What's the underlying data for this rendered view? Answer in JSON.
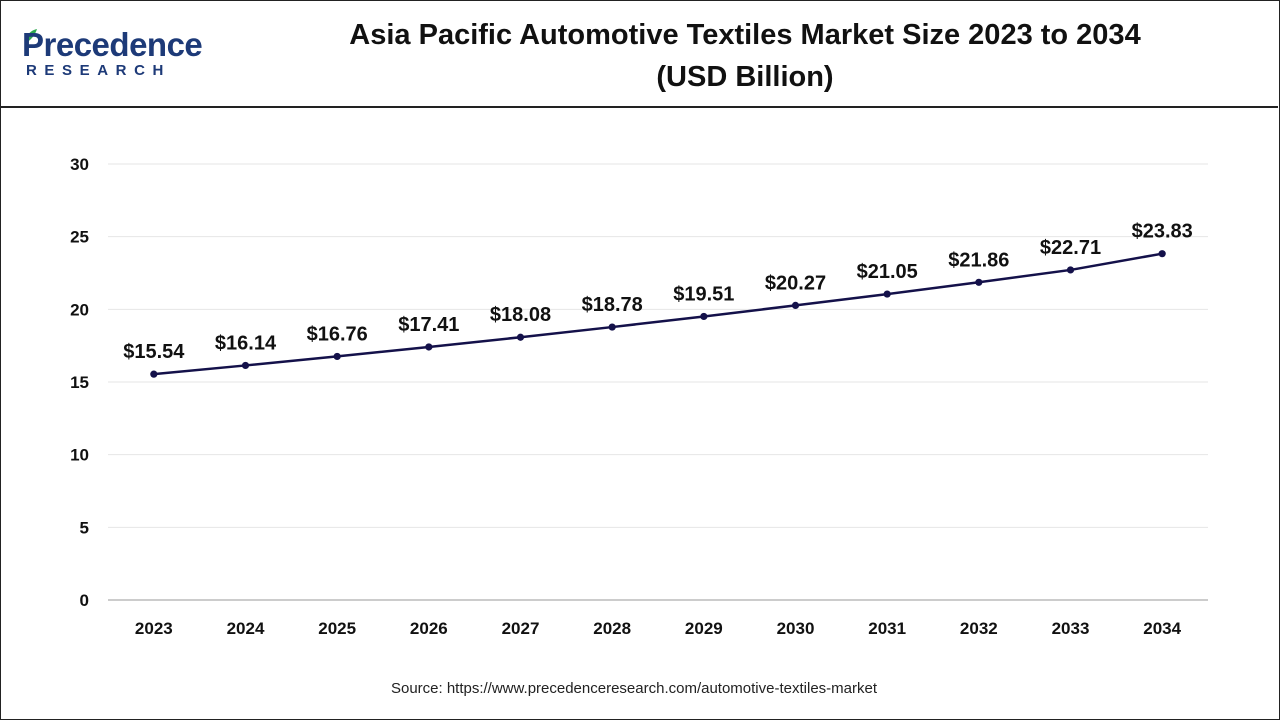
{
  "header": {
    "logo_main": "Precedence",
    "logo_sub": "RESEARCH",
    "title_line1": "Asia Pacific Automotive Textiles Market Size 2023 to 2034",
    "title_line2": "(USD Billion)"
  },
  "footer": {
    "source": "Source: https://www.precedenceresearch.com/automotive-textiles-market"
  },
  "colors": {
    "line": "#14114a",
    "brand": "#1d3a78",
    "leaf": "#2fa84f",
    "grid": "#e6e6e6"
  },
  "chart_data": {
    "type": "line",
    "title": "Asia Pacific Automotive Textiles Market Size 2023 to 2034 (USD Billion)",
    "categories": [
      "2023",
      "2024",
      "2025",
      "2026",
      "2027",
      "2028",
      "2029",
      "2030",
      "2031",
      "2032",
      "2033",
      "2034"
    ],
    "values": [
      15.54,
      16.14,
      16.76,
      17.41,
      18.08,
      18.78,
      19.51,
      20.27,
      21.05,
      21.86,
      22.71,
      23.83
    ],
    "data_labels": [
      "$15.54",
      "$16.14",
      "$16.76",
      "$17.41",
      "$18.08",
      "$18.78",
      "$19.51",
      "$20.27",
      "$21.05",
      "$21.86",
      "$22.71",
      "$23.83"
    ],
    "ylim": [
      0,
      30
    ],
    "yticks": [
      "0",
      "5",
      "10",
      "15",
      "20",
      "25",
      "30"
    ],
    "grid": true,
    "legend": "none",
    "xlabel": "",
    "ylabel": ""
  }
}
